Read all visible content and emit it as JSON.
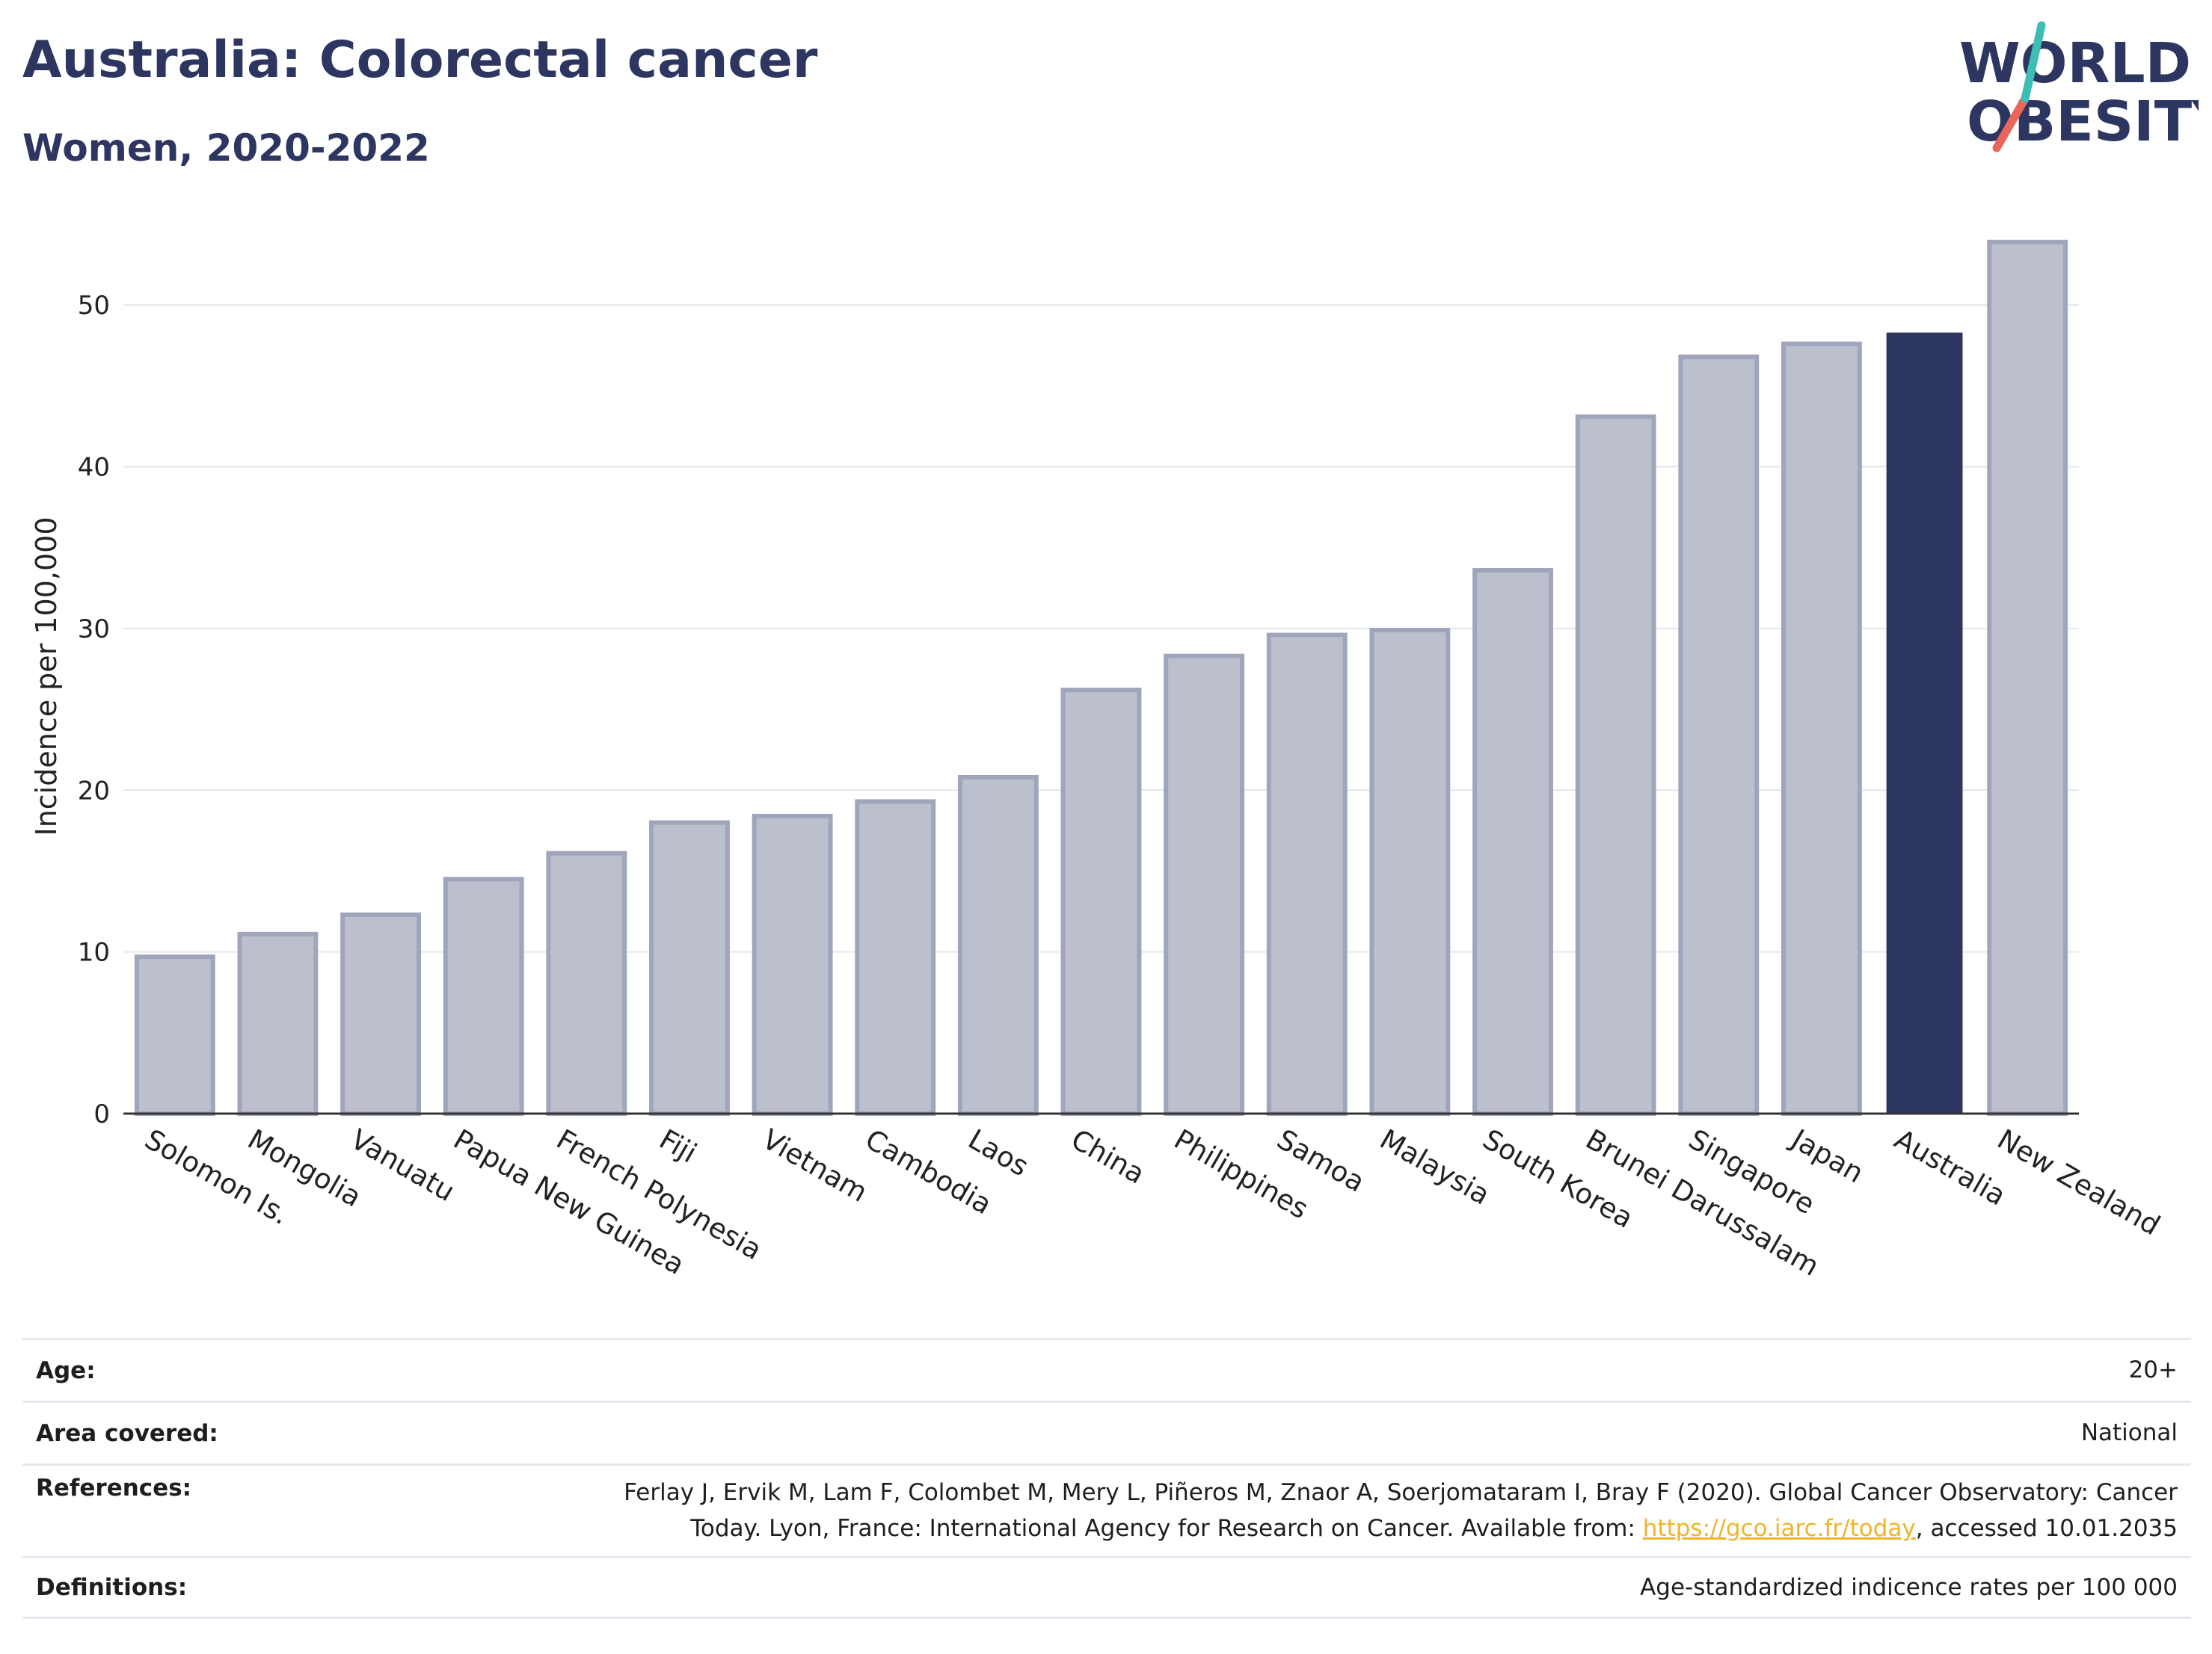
{
  "header": {
    "title": "Australia: Colorectal cancer",
    "subtitle": "Women, 2020-2022"
  },
  "logo": {
    "line1": "WORLD",
    "line2": "OBESITY",
    "accent_colors": [
      "#3dbdb4",
      "#e8665a"
    ]
  },
  "chart_data": {
    "type": "bar",
    "ylabel": "Incidence per 100,000",
    "ylim": [
      0,
      55
    ],
    "yticks": [
      0,
      10,
      20,
      30,
      40,
      50
    ],
    "grid": true,
    "categories": [
      "Solomon Is.",
      "Mongolia",
      "Vanuatu",
      "Papua New Guinea",
      "French Polynesia",
      "Fiji",
      "Vietnam",
      "Cambodia",
      "Laos",
      "China",
      "Philippines",
      "Samoa",
      "Malaysia",
      "South Korea",
      "Brunei Darussalam",
      "Singapore",
      "Japan",
      "Australia",
      "New Zealand"
    ],
    "values": [
      9.7,
      11.1,
      12.3,
      14.5,
      16.1,
      18.0,
      18.4,
      19.3,
      20.8,
      26.2,
      28.3,
      29.6,
      29.9,
      33.6,
      43.1,
      46.8,
      47.6,
      48.3,
      53.9
    ],
    "highlight": "Australia",
    "colors": {
      "bar": "#bcc0cd",
      "bar_edge": "#9fa5bb",
      "highlight": "#2d3561"
    }
  },
  "meta": {
    "age_label": "Age:",
    "age_value": "20+",
    "area_label": "Area covered:",
    "area_value": "National",
    "references_label": "References:",
    "references_text_1": "Ferlay J, Ervik M, Lam F, Colombet M, Mery L, Piñeros M, Znaor A, Soerjomataram I, Bray F (2020). Global Cancer Observatory: Cancer",
    "references_text_2": "Today. Lyon, France: International Agency for Research on Cancer. Available from: ",
    "references_link": "https://gco.iarc.fr/today",
    "references_text_3": ", accessed 10.01.2035",
    "definitions_label": "Definitions:",
    "definitions_value": "Age-standardized indicence rates per 100 000"
  }
}
